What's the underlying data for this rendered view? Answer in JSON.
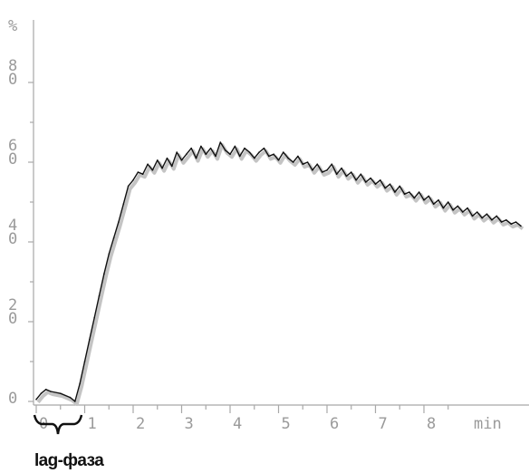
{
  "chart_data": {
    "type": "line",
    "title": "",
    "xlabel": "",
    "ylabel": "",
    "y_unit_label": "%",
    "x_unit_label": "min",
    "xlim": [
      0,
      10
    ],
    "ylim": [
      0,
      80
    ],
    "x_ticks": [
      "0",
      "1",
      "2",
      "3",
      "4",
      "5",
      "6",
      "7",
      "8"
    ],
    "y_ticks": [
      {
        "value": 80,
        "label": "80"
      },
      {
        "value": 60,
        "label": "60"
      },
      {
        "value": 40,
        "label": "40"
      },
      {
        "value": 20,
        "label": "20"
      },
      {
        "value": 0,
        "label": "0"
      }
    ],
    "grid": false,
    "legend": "none",
    "annotation": {
      "text": "lag-фаза",
      "x_range": [
        0,
        1
      ]
    },
    "series": [
      {
        "color": "#111111",
        "shadow_color": "#c4c4c4",
        "x": [
          0.0,
          0.1,
          0.2,
          0.3,
          0.5,
          0.7,
          0.8,
          0.9,
          1.0,
          1.1,
          1.2,
          1.3,
          1.4,
          1.5,
          1.6,
          1.7,
          1.8,
          1.9,
          2.0,
          2.1,
          2.2,
          2.3,
          2.4,
          2.5,
          2.6,
          2.7,
          2.8,
          2.9,
          3.0,
          3.1,
          3.2,
          3.3,
          3.4,
          3.5,
          3.6,
          3.7,
          3.8,
          3.9,
          4.0,
          4.1,
          4.2,
          4.3,
          4.4,
          4.5,
          4.6,
          4.7,
          4.8,
          4.9,
          5.0,
          5.1,
          5.2,
          5.3,
          5.4,
          5.5,
          5.6,
          5.7,
          5.8,
          5.9,
          6.0,
          6.1,
          6.2,
          6.3,
          6.4,
          6.5,
          6.6,
          6.7,
          6.8,
          6.9,
          7.0,
          7.1,
          7.2,
          7.3,
          7.4,
          7.5,
          7.6,
          7.7,
          7.8,
          7.9,
          8.0,
          8.1,
          8.2,
          8.3,
          8.4,
          8.5,
          8.6,
          8.7,
          8.8,
          8.9,
          9.0,
          9.1,
          9.2,
          9.3,
          9.4,
          9.5,
          9.6,
          9.7,
          9.8,
          9.9,
          10.0
        ],
        "values": [
          0.5,
          2.0,
          3.0,
          2.5,
          2.0,
          1.0,
          0.0,
          4.5,
          10.0,
          15.5,
          21.0,
          26.5,
          32.0,
          37.0,
          41.0,
          45.0,
          49.5,
          54.0,
          55.5,
          57.5,
          57.0,
          59.5,
          58.0,
          60.5,
          58.5,
          61.0,
          59.0,
          62.5,
          60.5,
          62.0,
          63.5,
          61.0,
          64.0,
          62.0,
          63.5,
          61.5,
          65.0,
          63.0,
          62.0,
          64.0,
          61.5,
          63.5,
          62.5,
          61.0,
          62.5,
          63.5,
          61.5,
          62.0,
          60.5,
          62.5,
          61.0,
          60.0,
          61.5,
          59.5,
          60.0,
          58.0,
          59.5,
          57.5,
          58.0,
          59.5,
          57.0,
          58.5,
          56.5,
          57.5,
          55.5,
          57.0,
          55.0,
          56.0,
          54.5,
          55.5,
          53.5,
          54.5,
          52.5,
          54.0,
          52.0,
          52.5,
          51.0,
          52.5,
          50.5,
          51.5,
          49.5,
          50.5,
          48.5,
          50.0,
          48.0,
          49.0,
          47.5,
          48.5,
          46.5,
          47.5,
          46.0,
          47.0,
          45.5,
          46.5,
          45.0,
          45.5,
          44.5,
          45.0,
          44.0
        ]
      }
    ]
  }
}
